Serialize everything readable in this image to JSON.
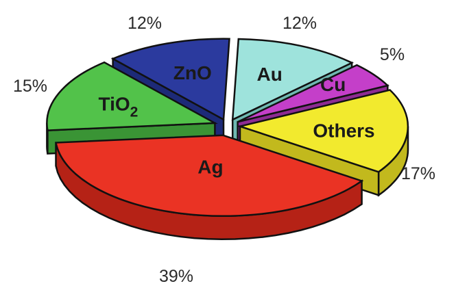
{
  "chart_data": {
    "type": "pie",
    "style": "3d-exploded",
    "categories": [
      "Au",
      "Cu",
      "Others",
      "Ag",
      "TiO2",
      "ZnO"
    ],
    "values": [
      12,
      5,
      17,
      39,
      15,
      12
    ],
    "value_labels": [
      "12%",
      "5%",
      "17%",
      "39%",
      "15%",
      "12%"
    ],
    "slice_labels": [
      {
        "main": "Au",
        "sub": ""
      },
      {
        "main": "Cu",
        "sub": ""
      },
      {
        "main": "Others",
        "sub": ""
      },
      {
        "main": "Ag",
        "sub": ""
      },
      {
        "main": "TiO",
        "sub": "2"
      },
      {
        "main": "ZnO",
        "sub": ""
      }
    ],
    "colors": [
      "#9ee3dc",
      "#c43fc9",
      "#f2ea2e",
      "#ea3324",
      "#52c24a",
      "#2b3a9e"
    ],
    "side_colors": [
      "#6fb8b1",
      "#8e2b93",
      "#c2b91d",
      "#b52216",
      "#3a9435",
      "#1d2a78"
    ],
    "title": "",
    "legend": "none"
  }
}
